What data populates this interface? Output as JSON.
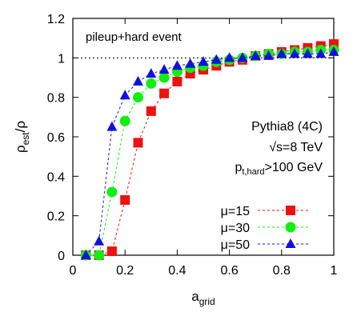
{
  "chart_data": {
    "type": "line",
    "xlabel": {
      "base": "a",
      "sub": "grid"
    },
    "ylabel": {
      "base": "ρ",
      "sub": "est",
      "tail": "/ρ"
    },
    "xlim": [
      0,
      1
    ],
    "ylim": [
      0,
      1.2
    ],
    "xticks": [
      0,
      0.2,
      0.4,
      0.6,
      0.8,
      1
    ],
    "yticks": [
      0,
      0.2,
      0.4,
      0.6,
      0.8,
      1,
      1.2
    ],
    "xtick_labels": [
      "0",
      "0.2",
      "0.4",
      "0.6",
      "0.8",
      "1"
    ],
    "ytick_labels": [
      "0",
      "0.2",
      "0.4",
      "0.6",
      "0.8",
      "1",
      "1.2"
    ],
    "reference_line": {
      "y": 1,
      "style": "dotted"
    },
    "legend_position": "bottom-right",
    "annotations": {
      "top_left": "pileup+hard event",
      "generator": "Pythia8 (4C)",
      "energy": {
        "prefix": "√s=",
        "value": "8 TeV"
      },
      "cut": {
        "base": "p",
        "sub": "t,hard",
        "tail": ">100 GeV"
      }
    },
    "x": [
      0.05,
      0.1,
      0.15,
      0.2,
      0.25,
      0.3,
      0.35,
      0.4,
      0.45,
      0.5,
      0.55,
      0.6,
      0.65,
      0.7,
      0.75,
      0.8,
      0.85,
      0.9,
      0.95,
      1.0
    ],
    "series": [
      {
        "name": "μ=15",
        "color": "#ee1111",
        "marker": "square",
        "values": [
          0,
          0,
          0.02,
          0.28,
          0.57,
          0.73,
          0.82,
          0.88,
          0.92,
          0.94,
          0.96,
          0.98,
          0.99,
          1.01,
          1.02,
          1.03,
          1.04,
          1.05,
          1.06,
          1.07
        ]
      },
      {
        "name": "μ=30",
        "color": "#11ee11",
        "marker": "circle",
        "values": [
          0,
          0,
          0.32,
          0.68,
          0.8,
          0.87,
          0.9,
          0.93,
          0.95,
          0.96,
          0.98,
          0.99,
          1.0,
          1.01,
          1.02,
          1.02,
          1.03,
          1.03,
          1.04,
          1.04
        ]
      },
      {
        "name": "μ=50",
        "color": "#1111dd",
        "marker": "triangle",
        "values": [
          0,
          0.07,
          0.65,
          0.81,
          0.88,
          0.92,
          0.94,
          0.96,
          0.97,
          0.98,
          0.99,
          1.0,
          1.0,
          1.01,
          1.01,
          1.02,
          1.02,
          1.02,
          1.02,
          1.03
        ]
      }
    ]
  }
}
